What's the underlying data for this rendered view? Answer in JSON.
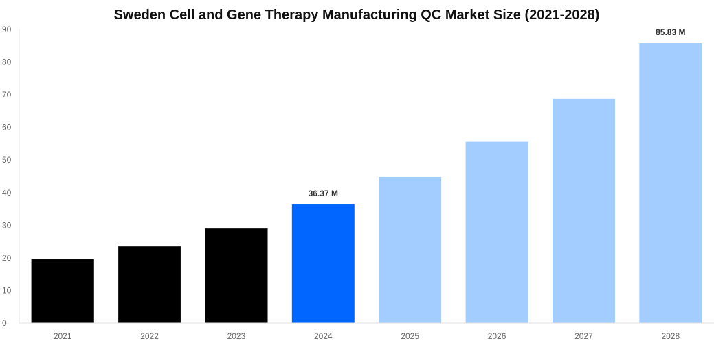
{
  "chart_data": {
    "type": "bar",
    "title": "Sweden Cell and Gene Therapy Manufacturing QC Market Size (2021-2028)",
    "xlabel": "",
    "ylabel": "",
    "categories": [
      "2021",
      "2022",
      "2023",
      "2024",
      "2025",
      "2026",
      "2027",
      "2028"
    ],
    "values": [
      19.6,
      23.5,
      29.0,
      36.37,
      44.8,
      55.6,
      68.8,
      85.83
    ],
    "data_labels": [
      "",
      "",
      "",
      "36.37 M",
      "",
      "",
      "",
      "85.83 M"
    ],
    "bar_colors": [
      "#000000",
      "#000000",
      "#000000",
      "#0066ff",
      "#a3cdff",
      "#a3cdff",
      "#a3cdff",
      "#a3cdff"
    ],
    "ylim": [
      0,
      90
    ],
    "yticks": [
      0,
      10,
      20,
      30,
      40,
      50,
      60,
      70,
      80,
      90
    ],
    "grid": false,
    "legend": "none"
  }
}
